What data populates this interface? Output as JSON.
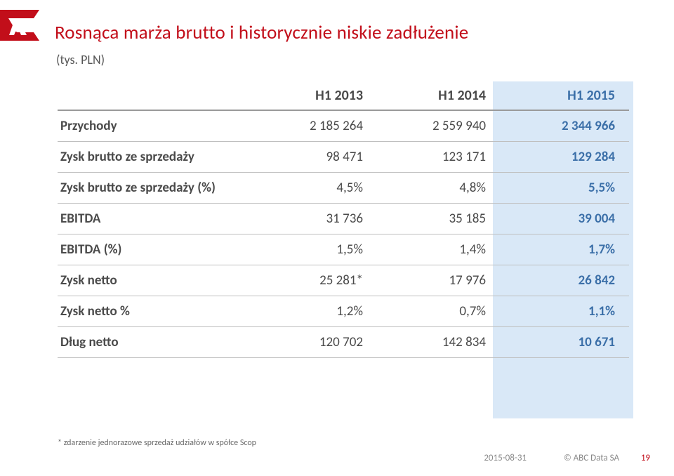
{
  "slide": {
    "title": "Rosnąca marża brutto i historycznie niskie zadłużenie",
    "subtitle": "(tys. PLN)",
    "title_color": "#c20e1a",
    "logo_fill": "#c20e1a"
  },
  "table": {
    "columns": [
      "",
      "H1 2013",
      "H1 2014",
      "H1 2015"
    ],
    "highlight_col_index": 3,
    "highlight_bg": "#d9e8f7",
    "highlight_text_color": "#3b6fa8",
    "border_color": "#bfbfbf",
    "rows": [
      {
        "label": "Przychody",
        "v1": "2 185 264",
        "v2": "2 559 940",
        "v3": "2 344 966"
      },
      {
        "label": "Zysk brutto ze sprzedaży",
        "v1": "98 471",
        "v2": "123 171",
        "v3": "129 284"
      },
      {
        "label": "Zysk brutto ze sprzedaży (%)",
        "v1": "4,5%",
        "v2": "4,8%",
        "v3": "5,5%"
      },
      {
        "label": "EBITDA",
        "v1": "31 736",
        "v2": "35 185",
        "v3": "39 004"
      },
      {
        "label": "EBITDA (%)",
        "v1": "1,5%",
        "v2": "1,4%",
        "v3": "1,7%"
      },
      {
        "label": "Zysk netto",
        "v1": "25 281*",
        "v2": "17 976",
        "v3": "26 842"
      },
      {
        "label": "Zysk netto %",
        "v1": "1,2%",
        "v2": "0,7%",
        "v3": "1,1%"
      },
      {
        "label": "Dług netto",
        "v1": "120 702",
        "v2": "142 834",
        "v3": "10 671"
      }
    ]
  },
  "footnote": "* zdarzenie jednorazowe sprzedaż udziałów w spółce Scop",
  "footer": {
    "date": "2015-08-31",
    "copyright": "© ABC Data SA",
    "page": "19",
    "page_color": "#c20e1a"
  }
}
